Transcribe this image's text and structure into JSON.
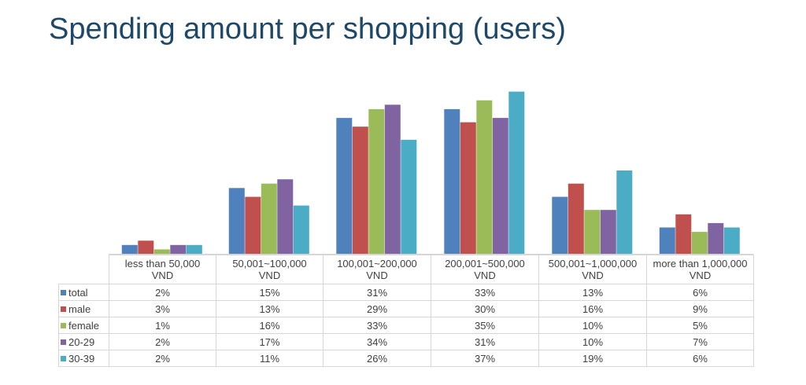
{
  "title": "Spending amount per shopping (users)",
  "chart_data": {
    "type": "bar",
    "title": "Spending amount per shopping (users)",
    "categories": [
      [
        "less than 50,000",
        "VND"
      ],
      [
        "50,001~100,000",
        "VND"
      ],
      [
        "100,001~200,000",
        "VND"
      ],
      [
        "200,001~500,000",
        "VND"
      ],
      [
        "500,001~1,000,000",
        "VND"
      ],
      [
        "more than 1,000,000",
        "VND"
      ]
    ],
    "series": [
      {
        "name": "total",
        "color": "#4f81bd",
        "values": [
          2,
          15,
          31,
          33,
          13,
          6
        ],
        "labels": [
          "2%",
          "15%",
          "31%",
          "33%",
          "13%",
          "6%"
        ]
      },
      {
        "name": "male",
        "color": "#c0504d",
        "values": [
          3,
          13,
          29,
          30,
          16,
          9
        ],
        "labels": [
          "3%",
          "13%",
          "29%",
          "30%",
          "16%",
          "9%"
        ]
      },
      {
        "name": "female",
        "color": "#9bbb59",
        "values": [
          1,
          16,
          33,
          35,
          10,
          5
        ],
        "labels": [
          "1%",
          "16%",
          "33%",
          "35%",
          "10%",
          "5%"
        ]
      },
      {
        "name": "20-29",
        "color": "#8064a2",
        "values": [
          2,
          17,
          34,
          31,
          10,
          7
        ],
        "labels": [
          "2%",
          "17%",
          "34%",
          "31%",
          "10%",
          "7%"
        ]
      },
      {
        "name": "30-39",
        "color": "#4bacc6",
        "values": [
          2,
          11,
          26,
          37,
          19,
          6
        ],
        "labels": [
          "2%",
          "11%",
          "26%",
          "37%",
          "19%",
          "6%"
        ]
      }
    ],
    "ylim": [
      0,
      38
    ],
    "grid": false,
    "legend": "data-table"
  }
}
